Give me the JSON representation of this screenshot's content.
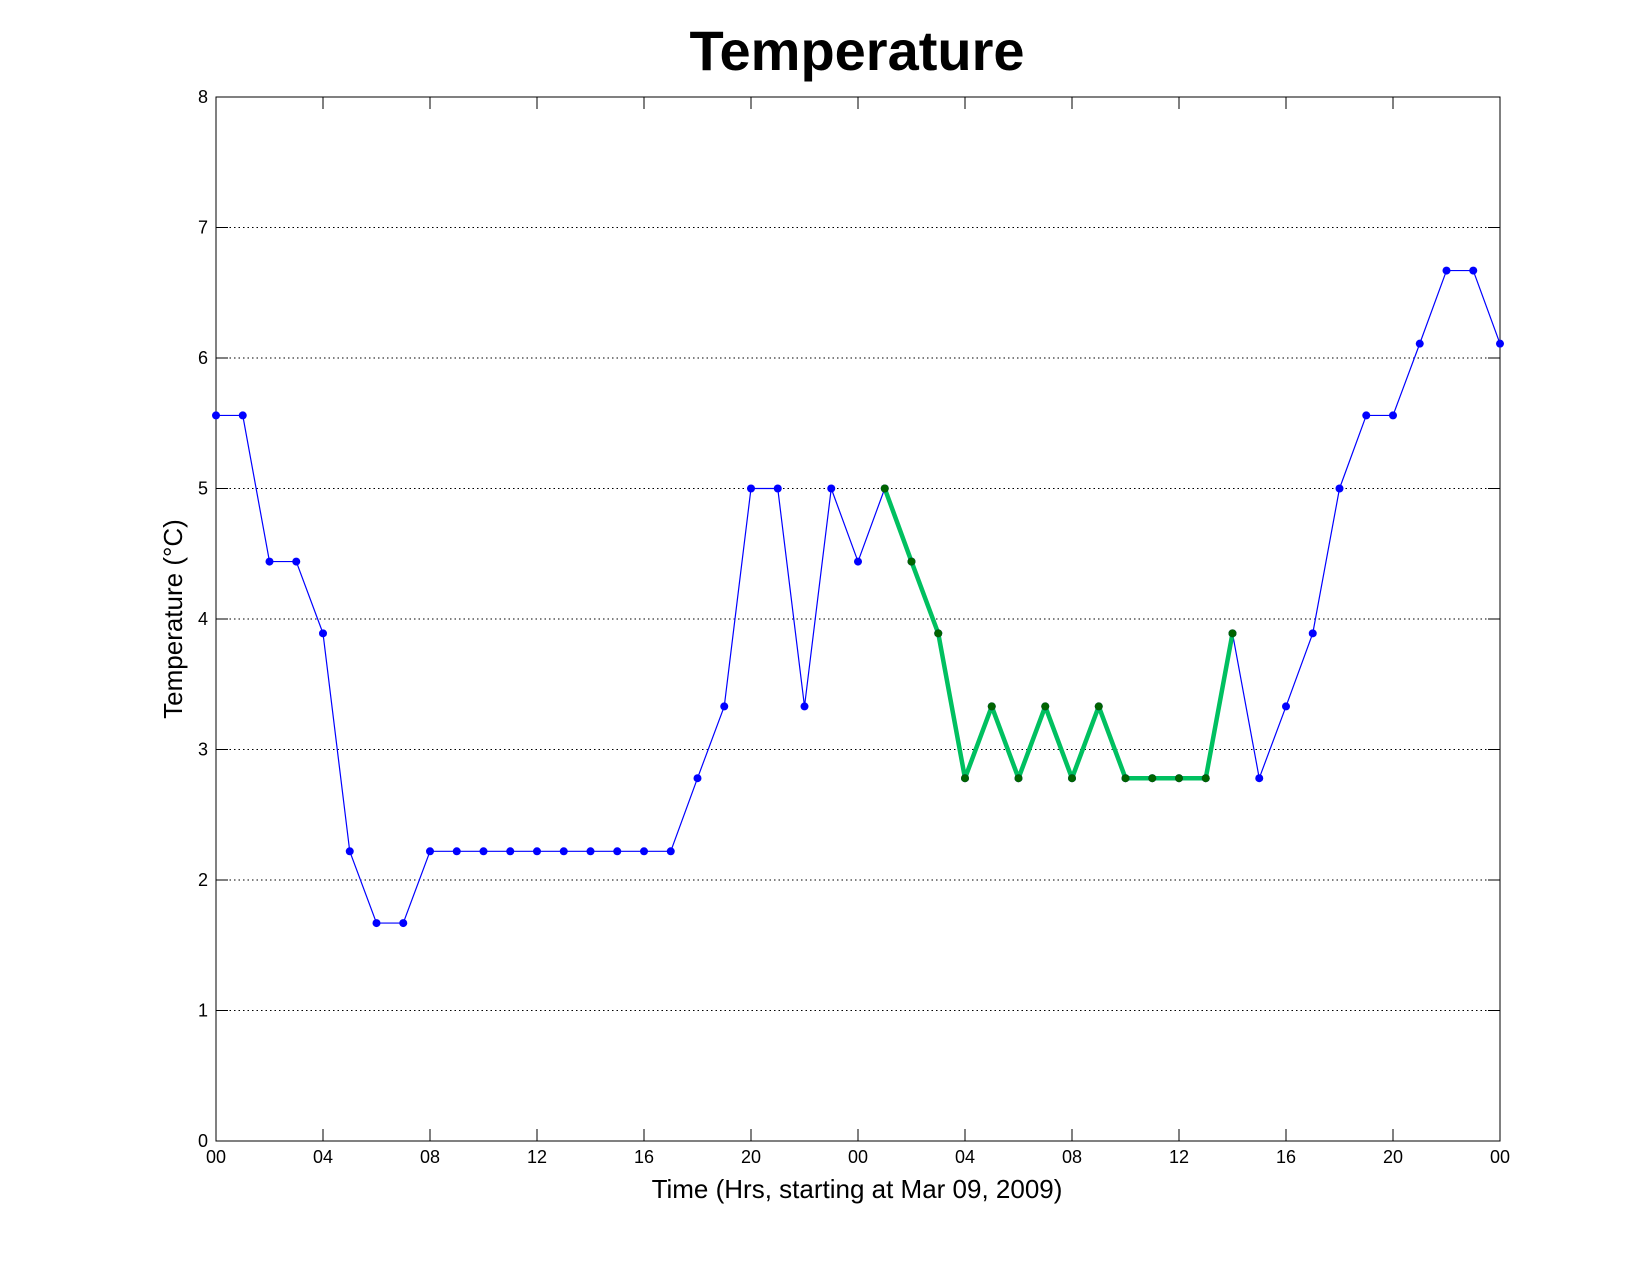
{
  "chart_data": {
    "type": "line",
    "title": "Temperature",
    "xlabel": "Time (Hrs, starting at Mar 09, 2009)",
    "ylabel": "Temperature (°C)",
    "xlim": [
      0,
      48
    ],
    "ylim": [
      0,
      8
    ],
    "grid": "horizontal dotted",
    "x_ticks": [
      0,
      4,
      8,
      12,
      16,
      20,
      24,
      28,
      32,
      36,
      40,
      44,
      48
    ],
    "x_tick_labels": [
      "00",
      "04",
      "08",
      "12",
      "16",
      "20",
      "00",
      "04",
      "08",
      "12",
      "16",
      "20",
      "00"
    ],
    "y_ticks": [
      0,
      1,
      2,
      3,
      4,
      5,
      6,
      7,
      8
    ],
    "y_tick_labels": [
      "0",
      "1",
      "2",
      "3",
      "4",
      "5",
      "6",
      "7",
      "8"
    ],
    "series": [
      {
        "color": "#0000ff",
        "marker_color": "#0000ff",
        "x": [
          0,
          1,
          2,
          3,
          4,
          5,
          6,
          7,
          8,
          9,
          10,
          11,
          12,
          13,
          14,
          15,
          16,
          17,
          18,
          19,
          20,
          21,
          22,
          23,
          24,
          25,
          26,
          27,
          28,
          29,
          30,
          31,
          32,
          33,
          34,
          35,
          36,
          37,
          38,
          39,
          40,
          41,
          42,
          43,
          44,
          45,
          46,
          47,
          48
        ],
        "y": [
          5.56,
          5.56,
          4.44,
          4.44,
          3.89,
          2.22,
          1.67,
          1.67,
          2.22,
          2.22,
          2.22,
          2.22,
          2.22,
          2.22,
          2.22,
          2.22,
          2.22,
          2.22,
          2.78,
          3.33,
          5.0,
          5.0,
          3.33,
          5.0,
          4.44,
          5.0,
          4.44,
          3.89,
          2.78,
          3.33,
          2.78,
          3.33,
          2.78,
          3.33,
          2.78,
          2.78,
          2.78,
          2.78,
          3.89,
          2.78,
          3.33,
          3.89,
          5.0,
          5.56,
          5.56,
          6.11,
          6.67,
          6.67,
          6.11
        ]
      },
      {
        "color": "#00c060",
        "marker_color": "#006400",
        "x": [
          25,
          26,
          27,
          28,
          29,
          30,
          31,
          32,
          33,
          34,
          35,
          36,
          37,
          38
        ],
        "y": [
          5.0,
          4.44,
          3.89,
          2.78,
          3.33,
          2.78,
          3.33,
          2.78,
          3.33,
          2.78,
          2.78,
          2.78,
          2.78,
          3.89
        ]
      }
    ]
  }
}
